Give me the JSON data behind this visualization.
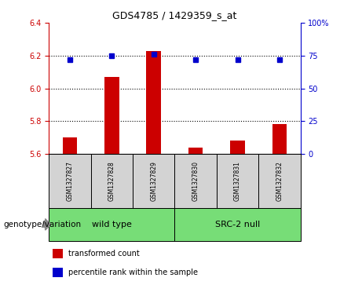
{
  "title": "GDS4785 / 1429359_s_at",
  "samples": [
    "GSM1327827",
    "GSM1327828",
    "GSM1327829",
    "GSM1327830",
    "GSM1327831",
    "GSM1327832"
  ],
  "bar_values": [
    5.7,
    6.07,
    6.23,
    5.64,
    5.68,
    5.78
  ],
  "dot_values": [
    72,
    75,
    76,
    72,
    72,
    72
  ],
  "bar_bottom": 5.6,
  "ylim_left": [
    5.6,
    6.4
  ],
  "ylim_right": [
    0,
    100
  ],
  "yticks_left": [
    5.6,
    5.8,
    6.0,
    6.2,
    6.4
  ],
  "yticks_right": [
    0,
    25,
    50,
    75,
    100
  ],
  "bar_color": "#cc0000",
  "dot_color": "#0000cc",
  "groups": [
    {
      "label": "wild type",
      "samples": [
        0,
        1,
        2
      ],
      "color": "#77dd77"
    },
    {
      "label": "SRC-2 null",
      "samples": [
        3,
        4,
        5
      ],
      "color": "#77dd77"
    }
  ],
  "group_box_color": "#d3d3d3",
  "legend_items": [
    {
      "color": "#cc0000",
      "label": "transformed count"
    },
    {
      "color": "#0000cc",
      "label": "percentile rank within the sample"
    }
  ],
  "genotype_label": "genotype/variation",
  "hgrid_values": [
    5.8,
    6.0,
    6.2
  ]
}
